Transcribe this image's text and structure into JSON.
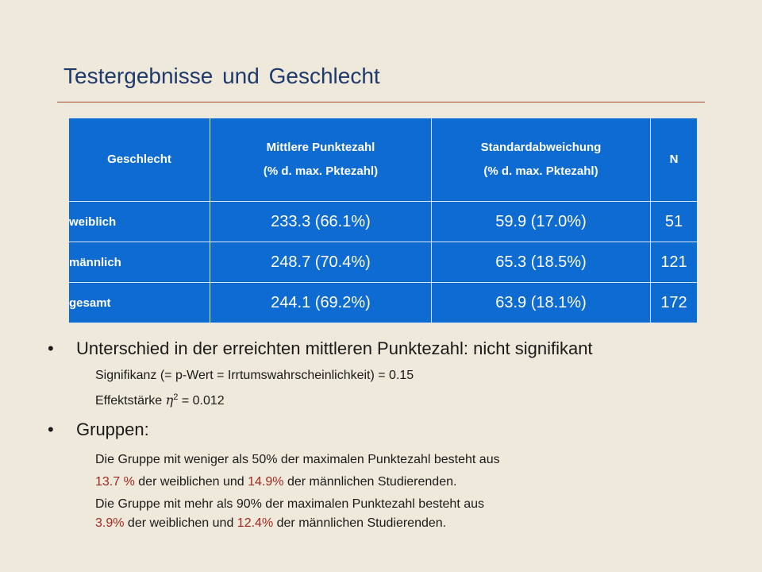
{
  "title": "Testergebnisse und Geschlecht",
  "table": {
    "headers": [
      {
        "line1": "Geschlecht",
        "line2": ""
      },
      {
        "line1": "Mittlere Punktezahl",
        "line2": "(% d. max. Pktezahl)"
      },
      {
        "line1": "Standardabweichung",
        "line2": "(% d. max. Pktezahl)"
      },
      {
        "line1": "N",
        "line2": ""
      }
    ],
    "rows": [
      {
        "label": "weiblich",
        "mean": "233.3 (66.1%)",
        "sd": "59.9 (17.0%)",
        "n": "51"
      },
      {
        "label": "männlich",
        "mean": "248.7 (70.4%)",
        "sd": "65.3 (18.5%)",
        "n": "121"
      },
      {
        "label": "gesamt",
        "mean": "244.1 (69.2%)",
        "sd": "63.9 (18.1%)",
        "n": "172"
      }
    ]
  },
  "bullet_marker": "•",
  "bullet1": {
    "text": "Unterschied in der erreichten mittleren Punktezahl: nicht signifikant",
    "significance": "Signifikanz (= p-Wert = Irrtumswahrscheinlichkeit) = 0.15",
    "effect_prefix": "Effektstärke",
    "effect_symbol": "η",
    "effect_exponent": "2",
    "effect_value": "= 0.012"
  },
  "bullet2": {
    "text": "Gruppen:",
    "g1_line1": "Die Gruppe mit weniger als 50% der maximalen Punktezahl besteht aus",
    "g1_pct_f": "13.7 %",
    "g1_mid": "der weiblichen und",
    "g1_pct_m": "14.9%",
    "g1_end": "der männlichen Studierenden.",
    "g2_line1": "Die Gruppe mit mehr als 90% der maximalen Punktezahl besteht aus",
    "g2_pct_f": "3.9%",
    "g2_mid": "der weiblichen und",
    "g2_pct_m": "12.4%",
    "g2_end": "der männlichen Studierenden."
  },
  "colors": {
    "table_blue": "#0e6bd2",
    "title_blue": "#1f3a6b",
    "highlight_red": "#a0281e",
    "background": "#efe9dc"
  }
}
